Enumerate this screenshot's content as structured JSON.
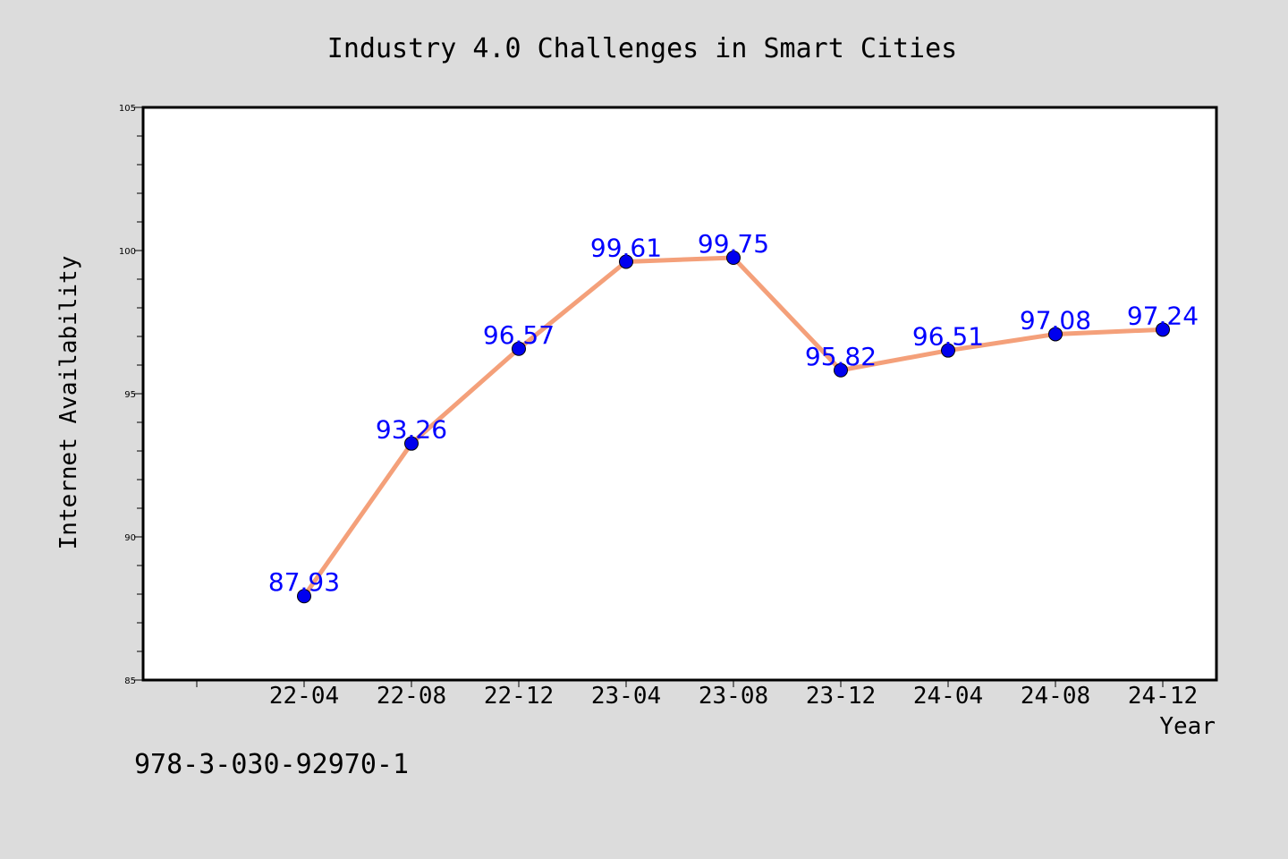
{
  "chart_data": {
    "type": "line",
    "title": "Industry 4.0 Challenges in Smart Cities",
    "xlabel": "Year",
    "ylabel": "Internet Availability",
    "categories": [
      "22-04",
      "22-08",
      "22-12",
      "23-04",
      "23-08",
      "23-12",
      "24-04",
      "24-08",
      "24-12"
    ],
    "series": [
      {
        "values": [
          87.93,
          93.26,
          96.57,
          99.61,
          99.75,
          95.82,
          96.51,
          97.08,
          97.24
        ],
        "line_color": "#f4a07a",
        "marker_color": "#0000ee"
      }
    ],
    "data_labels": [
      "87.93",
      "93.26",
      "96.57",
      "99.61",
      "99.75",
      "95.82",
      "96.51",
      "97.08",
      "97.24"
    ],
    "ylim": [
      85,
      105
    ],
    "yticks": [
      85,
      90,
      95,
      100,
      105
    ],
    "ytick_labels": [
      "85",
      "90",
      "95",
      "100",
      "105"
    ],
    "grid": false,
    "legend": "none"
  },
  "footer_text": "978-3-030-92970-1",
  "colors": {
    "figure_background": "#dcdcdc",
    "plot_background": "#ffffff",
    "data_label": "#0000ff",
    "axes": "#000000"
  }
}
